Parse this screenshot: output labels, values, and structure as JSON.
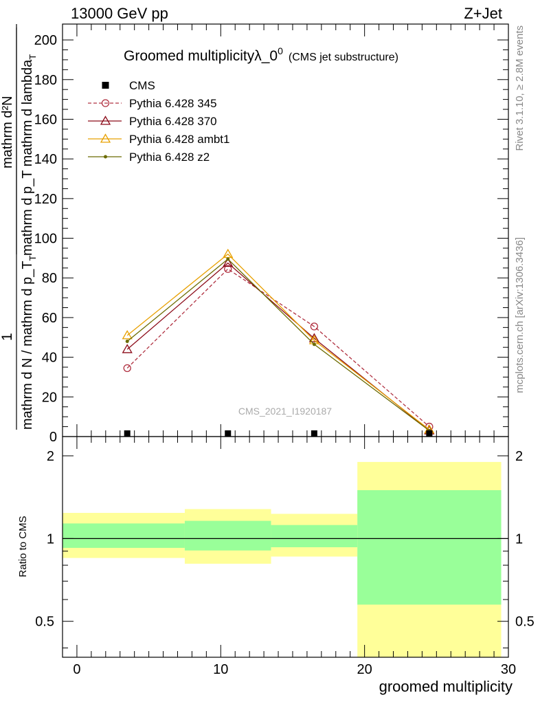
{
  "header": {
    "left": "13000 GeV pp",
    "right": "Z+Jet"
  },
  "side_labels": {
    "rivet": "Rivet 3.1.10, ≥ 2.8M events",
    "mcplots": "mcplots.cern.ch [arXiv:1306.3436]"
  },
  "watermark": "CMS_2021_I1920187",
  "chart_data": {
    "type": "line",
    "title_main": "Groomed multiplicityλ_0",
    "title_sup": "0",
    "title_sub": "(CMS jet substructure)",
    "ylabel_fraction": {
      "numerator": "1",
      "denominator": "mathrm d N / mathrm d p_T",
      "denominator_sub": "T",
      "rhs_numerator": "mathrm d²N",
      "rhs_denominator": "mathrm d p_T mathrm d lambda",
      "rhs_sub": "T"
    },
    "xlabel": "groomed multiplicity",
    "ratio_ylabel": "Ratio to CMS",
    "xlim": [
      -1,
      30
    ],
    "ylim": [
      0,
      208
    ],
    "yticks": [
      0,
      20,
      40,
      60,
      80,
      100,
      120,
      140,
      160,
      180,
      200
    ],
    "xticks": [
      0,
      10,
      20,
      30
    ],
    "ratio_ylim": [
      0.37,
      2.35
    ],
    "ratio_yticks": [
      0.5,
      1,
      2
    ],
    "ratio_yticklabels": [
      "0.5",
      "1",
      "2"
    ],
    "x": [
      3.5,
      10.5,
      16.5,
      24.5
    ],
    "cms": {
      "name": "CMS",
      "values": [
        0.3,
        0.4,
        0.4,
        0.4
      ]
    },
    "series": [
      {
        "name": "Pythia 6.428 345",
        "color": "#b03040",
        "marker": "circle",
        "dashed": true,
        "values": [
          34.5,
          84.5,
          55.5,
          5.0
        ]
      },
      {
        "name": "Pythia 6.428 370",
        "color": "#8b0a18",
        "marker": "triangle",
        "dashed": false,
        "values": [
          44.0,
          87.5,
          49.5,
          3.0
        ]
      },
      {
        "name": "Pythia 6.428 ambt1",
        "color": "#e8a000",
        "marker": "triangle",
        "dashed": false,
        "values": [
          51.0,
          92.0,
          48.5,
          3.5
        ]
      },
      {
        "name": "Pythia 6.428 z2",
        "color": "#6b6b00",
        "marker": "dot",
        "dashed": false,
        "values": [
          48.0,
          89.5,
          46.5,
          3.0
        ]
      }
    ],
    "ratio_bands": [
      {
        "xmin": -1,
        "xmax": 7.5,
        "yellow": [
          0.85,
          1.24
        ],
        "green": [
          0.925,
          1.135
        ]
      },
      {
        "xmin": 7.5,
        "xmax": 13.5,
        "yellow": [
          0.81,
          1.28
        ],
        "green": [
          0.905,
          1.16
        ]
      },
      {
        "xmin": 13.5,
        "xmax": 19.5,
        "yellow": [
          0.86,
          1.23
        ],
        "green": [
          0.93,
          1.12
        ]
      },
      {
        "xmin": 19.5,
        "xmax": 29.5,
        "yellow": [
          0.37,
          1.9
        ],
        "green": [
          0.575,
          1.5
        ]
      }
    ],
    "colors": {
      "yellow_band": "#ffff99",
      "green_band": "#99ff99"
    }
  }
}
